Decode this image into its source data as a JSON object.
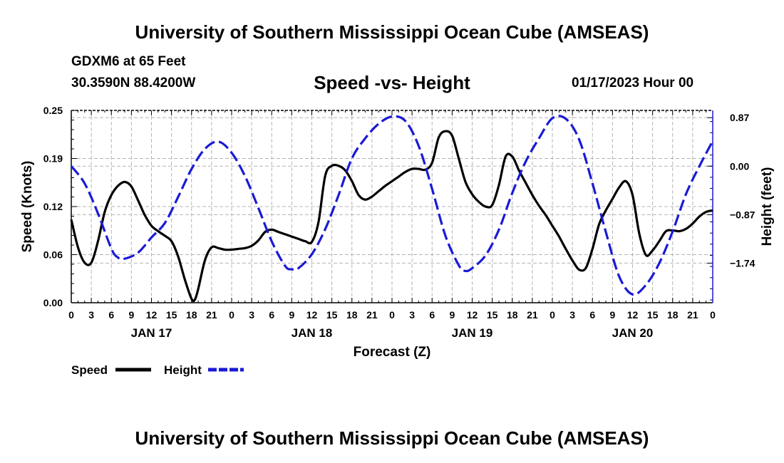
{
  "header": {
    "title": "University of Southern Mississippi Ocean Cube (AMSEAS)",
    "station": "GDXM6 at 65 Feet",
    "coords": "30.3590N  88.4200W",
    "datetime": "01/17/2023 Hour 00"
  },
  "footer": {
    "title": "University of Southern Mississippi Ocean Cube (AMSEAS)"
  },
  "chart_data": {
    "type": "line",
    "title": "Speed -vs- Height",
    "xlabel": "Forecast (Z)",
    "ylabel_left": "Speed (Knots)",
    "ylabel_right": "Height (feet)",
    "x_unit": "hours since 01/17/2023 00Z",
    "xlim": [
      0,
      96
    ],
    "ylim_left": [
      0,
      0.25
    ],
    "ylim_right": [
      -2.45,
      1.0
    ],
    "left_ticks": [
      {
        "v": 0.0,
        "label": "0.00"
      },
      {
        "v": 0.0625,
        "label": "0.06"
      },
      {
        "v": 0.125,
        "label": "0.12"
      },
      {
        "v": 0.1875,
        "label": "0.19"
      },
      {
        "v": 0.25,
        "label": "0.25"
      }
    ],
    "right_ticks": [
      {
        "v": 0.87,
        "label": "0.87"
      },
      {
        "v": 0.0,
        "label": "0.00"
      },
      {
        "v": -0.87,
        "label": "−0.87"
      },
      {
        "v": -1.74,
        "label": "−1.74"
      }
    ],
    "x_ticks": [
      {
        "h": 0,
        "label": "0"
      },
      {
        "h": 3,
        "label": "3"
      },
      {
        "h": 6,
        "label": "6"
      },
      {
        "h": 9,
        "label": "9"
      },
      {
        "h": 12,
        "label": "12"
      },
      {
        "h": 15,
        "label": "15"
      },
      {
        "h": 18,
        "label": "18"
      },
      {
        "h": 21,
        "label": "21"
      },
      {
        "h": 24,
        "label": "0"
      },
      {
        "h": 27,
        "label": "3"
      },
      {
        "h": 30,
        "label": "6"
      },
      {
        "h": 33,
        "label": "9"
      },
      {
        "h": 36,
        "label": "12"
      },
      {
        "h": 39,
        "label": "15"
      },
      {
        "h": 42,
        "label": "18"
      },
      {
        "h": 45,
        "label": "21"
      },
      {
        "h": 48,
        "label": "0"
      },
      {
        "h": 51,
        "label": "3"
      },
      {
        "h": 54,
        "label": "6"
      },
      {
        "h": 57,
        "label": "9"
      },
      {
        "h": 60,
        "label": "12"
      },
      {
        "h": 63,
        "label": "15"
      },
      {
        "h": 66,
        "label": "18"
      },
      {
        "h": 69,
        "label": "21"
      },
      {
        "h": 72,
        "label": "0"
      },
      {
        "h": 75,
        "label": "3"
      },
      {
        "h": 78,
        "label": "6"
      },
      {
        "h": 81,
        "label": "9"
      },
      {
        "h": 84,
        "label": "12"
      },
      {
        "h": 87,
        "label": "15"
      },
      {
        "h": 90,
        "label": "18"
      },
      {
        "h": 93,
        "label": "21"
      },
      {
        "h": 96,
        "label": "0"
      }
    ],
    "day_labels": [
      {
        "h": 12,
        "label": "JAN 17"
      },
      {
        "h": 36,
        "label": "JAN 18"
      },
      {
        "h": 60,
        "label": "JAN 19"
      },
      {
        "h": 84,
        "label": "JAN 20"
      }
    ],
    "series": [
      {
        "name": "Speed",
        "axis": "left",
        "color": "#000000",
        "dash": "solid",
        "points": [
          [
            0,
            0.108
          ],
          [
            1,
            0.072
          ],
          [
            2,
            0.052
          ],
          [
            3,
            0.052
          ],
          [
            4,
            0.08
          ],
          [
            5,
            0.118
          ],
          [
            6,
            0.14
          ],
          [
            7,
            0.152
          ],
          [
            8,
            0.157
          ],
          [
            9,
            0.151
          ],
          [
            10,
            0.133
          ],
          [
            11,
            0.114
          ],
          [
            12,
            0.1
          ],
          [
            13,
            0.093
          ],
          [
            14,
            0.087
          ],
          [
            15,
            0.08
          ],
          [
            16,
            0.06
          ],
          [
            17,
            0.03
          ],
          [
            18,
            0.005
          ],
          [
            18.5,
            0.004
          ],
          [
            19,
            0.018
          ],
          [
            20,
            0.055
          ],
          [
            21,
            0.072
          ],
          [
            22,
            0.071
          ],
          [
            23,
            0.069
          ],
          [
            24,
            0.069
          ],
          [
            25,
            0.07
          ],
          [
            26,
            0.071
          ],
          [
            27,
            0.074
          ],
          [
            28,
            0.081
          ],
          [
            29,
            0.092
          ],
          [
            30,
            0.095
          ],
          [
            31,
            0.092
          ],
          [
            32,
            0.089
          ],
          [
            33,
            0.086
          ],
          [
            34,
            0.083
          ],
          [
            35,
            0.08
          ],
          [
            36,
            0.079
          ],
          [
            37,
            0.105
          ],
          [
            38,
            0.165
          ],
          [
            39,
            0.178
          ],
          [
            40,
            0.178
          ],
          [
            41,
            0.172
          ],
          [
            42,
            0.158
          ],
          [
            43,
            0.14
          ],
          [
            44,
            0.134
          ],
          [
            45,
            0.138
          ],
          [
            46,
            0.145
          ],
          [
            47,
            0.152
          ],
          [
            48,
            0.158
          ],
          [
            49,
            0.164
          ],
          [
            50,
            0.17
          ],
          [
            51,
            0.174
          ],
          [
            52,
            0.174
          ],
          [
            53,
            0.173
          ],
          [
            54,
            0.182
          ],
          [
            55,
            0.215
          ],
          [
            56,
            0.223
          ],
          [
            57,
            0.217
          ],
          [
            58,
            0.187
          ],
          [
            59,
            0.157
          ],
          [
            60,
            0.141
          ],
          [
            61,
            0.131
          ],
          [
            62,
            0.125
          ],
          [
            63,
            0.127
          ],
          [
            64,
            0.153
          ],
          [
            65,
            0.19
          ],
          [
            66,
            0.19
          ],
          [
            67,
            0.172
          ],
          [
            68,
            0.156
          ],
          [
            69,
            0.14
          ],
          [
            70,
            0.126
          ],
          [
            71,
            0.114
          ],
          [
            72,
            0.1
          ],
          [
            73,
            0.086
          ],
          [
            74,
            0.07
          ],
          [
            75,
            0.055
          ],
          [
            76,
            0.043
          ],
          [
            77,
            0.045
          ],
          [
            78,
            0.07
          ],
          [
            79,
            0.102
          ],
          [
            80,
            0.12
          ],
          [
            81,
            0.135
          ],
          [
            82,
            0.15
          ],
          [
            83,
            0.158
          ],
          [
            84,
            0.14
          ],
          [
            85,
            0.09
          ],
          [
            86,
            0.062
          ],
          [
            87,
            0.068
          ],
          [
            88,
            0.08
          ],
          [
            89,
            0.093
          ],
          [
            90,
            0.094
          ],
          [
            91,
            0.093
          ],
          [
            92,
            0.096
          ],
          [
            93,
            0.103
          ],
          [
            94,
            0.112
          ],
          [
            95,
            0.118
          ],
          [
            96,
            0.12
          ]
        ]
      },
      {
        "name": "Height",
        "axis": "right",
        "color": "#1a1ad6",
        "dash": "dashed",
        "points": [
          [
            0,
            0.0
          ],
          [
            2,
            -0.31
          ],
          [
            4,
            -0.85
          ],
          [
            6,
            -1.48
          ],
          [
            7,
            -1.64
          ],
          [
            8,
            -1.66
          ],
          [
            10,
            -1.55
          ],
          [
            12,
            -1.28
          ],
          [
            14,
            -1.02
          ],
          [
            16,
            -0.55
          ],
          [
            18,
            -0.05
          ],
          [
            20,
            0.31
          ],
          [
            22,
            0.44
          ],
          [
            24,
            0.24
          ],
          [
            26,
            -0.18
          ],
          [
            28,
            -0.75
          ],
          [
            30,
            -1.35
          ],
          [
            32,
            -1.79
          ],
          [
            33,
            -1.85
          ],
          [
            34,
            -1.83
          ],
          [
            36,
            -1.58
          ],
          [
            38,
            -1.13
          ],
          [
            40,
            -0.52
          ],
          [
            42,
            0.14
          ],
          [
            44,
            0.5
          ],
          [
            46,
            0.76
          ],
          [
            48,
            0.89
          ],
          [
            50,
            0.81
          ],
          [
            52,
            0.36
          ],
          [
            54,
            -0.41
          ],
          [
            56,
            -1.25
          ],
          [
            58,
            -1.78
          ],
          [
            59,
            -1.88
          ],
          [
            60,
            -1.83
          ],
          [
            62,
            -1.6
          ],
          [
            64,
            -1.14
          ],
          [
            66,
            -0.48
          ],
          [
            68,
            0.08
          ],
          [
            70,
            0.5
          ],
          [
            72,
            0.86
          ],
          [
            74,
            0.85
          ],
          [
            76,
            0.48
          ],
          [
            78,
            -0.31
          ],
          [
            80,
            -1.18
          ],
          [
            82,
            -1.98
          ],
          [
            84,
            -2.3
          ],
          [
            86,
            -2.13
          ],
          [
            88,
            -1.74
          ],
          [
            90,
            -1.17
          ],
          [
            92,
            -0.5
          ],
          [
            94,
            0.0
          ],
          [
            96,
            0.45
          ]
        ]
      }
    ],
    "legend": [
      {
        "label": "Speed",
        "color": "#000000",
        "dash": "solid"
      },
      {
        "label": "Height",
        "color": "#1a1ad6",
        "dash": "dashed"
      }
    ]
  }
}
